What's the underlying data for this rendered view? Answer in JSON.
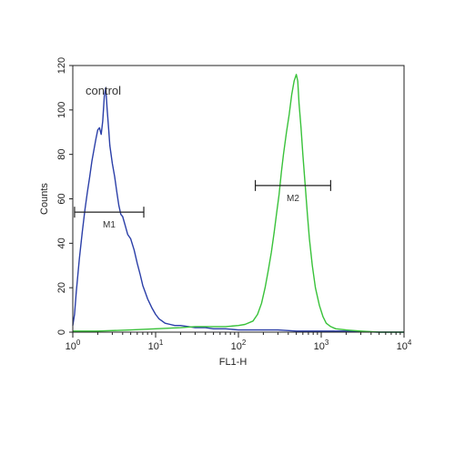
{
  "chart_data": {
    "type": "line",
    "title": "",
    "xlabel": "FL1-H",
    "ylabel": "Counts",
    "x_scale": "log",
    "xlim": [
      1,
      10000
    ],
    "ylim": [
      0,
      120
    ],
    "x_ticks": [
      {
        "value": 1,
        "base": "10",
        "exp": "0"
      },
      {
        "value": 10,
        "base": "10",
        "exp": "1"
      },
      {
        "value": 100,
        "base": "10",
        "exp": "2"
      },
      {
        "value": 1000,
        "base": "10",
        "exp": "3"
      },
      {
        "value": 10000,
        "base": "10",
        "exp": "4"
      }
    ],
    "y_ticks": [
      0,
      20,
      40,
      60,
      80,
      100,
      120
    ],
    "grid": false,
    "annotations": [
      {
        "text": "control"
      }
    ],
    "markers": [
      {
        "label": "M1",
        "x_range": [
          1.05,
          7.2
        ],
        "y": 54
      },
      {
        "label": "M2",
        "x_range": [
          160,
          1300
        ],
        "y": 66
      }
    ],
    "series": [
      {
        "color": "#2b3fa8",
        "x": [
          1,
          1.05,
          1.1,
          1.2,
          1.3,
          1.4,
          1.5,
          1.6,
          1.7,
          1.8,
          1.9,
          2.0,
          2.1,
          2.2,
          2.3,
          2.4,
          2.5,
          2.6,
          2.7,
          2.8,
          3.0,
          3.2,
          3.4,
          3.6,
          3.8,
          4.0,
          4.3,
          4.6,
          5.0,
          5.5,
          6.0,
          6.5,
          7.0,
          7.5,
          8.0,
          9.0,
          10,
          11,
          12,
          13,
          15,
          17,
          20,
          25,
          30,
          40,
          50,
          70,
          100,
          150,
          200,
          300,
          500,
          700,
          1000,
          2000,
          5000,
          10000
        ],
        "y": [
          3,
          8,
          18,
          33,
          45,
          55,
          63,
          70,
          77,
          82,
          87,
          91,
          92,
          89,
          95,
          106,
          110,
          100,
          92,
          84,
          76,
          70,
          63,
          57,
          53,
          52,
          48,
          44,
          42,
          37,
          31,
          26,
          21,
          18,
          15,
          11,
          8,
          6,
          5,
          4,
          3.5,
          3,
          3,
          2.5,
          2,
          2,
          1.5,
          1.5,
          1,
          1,
          1,
          1,
          0.5,
          0.5,
          0.5,
          0.5,
          0,
          0
        ]
      },
      {
        "color": "#39c23a",
        "x": [
          1,
          2,
          5,
          10,
          20,
          30,
          50,
          70,
          100,
          120,
          150,
          170,
          190,
          210,
          230,
          250,
          270,
          290,
          310,
          330,
          350,
          380,
          410,
          440,
          470,
          500,
          520,
          540,
          570,
          600,
          640,
          680,
          720,
          780,
          850,
          950,
          1050,
          1150,
          1300,
          1500,
          2000,
          3000,
          5000,
          10000
        ],
        "y": [
          0.5,
          0.5,
          1,
          1.5,
          2,
          2.5,
          2.5,
          2.5,
          3,
          3.5,
          5,
          8,
          13,
          20,
          28,
          36,
          45,
          54,
          62,
          72,
          80,
          90,
          98,
          107,
          113,
          116,
          113,
          103,
          92,
          80,
          66,
          53,
          42,
          30,
          20,
          12,
          7,
          4,
          2.5,
          1.5,
          1,
          0.5,
          0,
          0
        ]
      }
    ]
  }
}
